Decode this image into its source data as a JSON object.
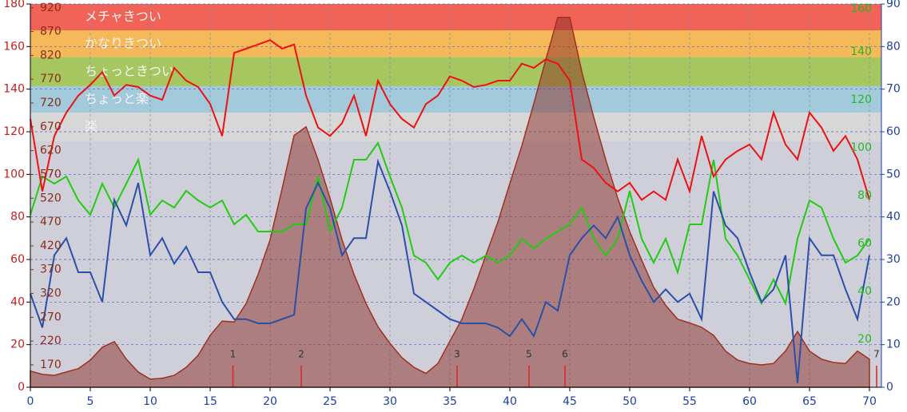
{
  "chart_data": {
    "type": "line",
    "x": [
      0,
      1,
      2,
      3,
      4,
      5,
      6,
      7,
      8,
      9,
      10,
      11,
      12,
      13,
      14,
      15,
      16,
      17,
      18,
      19,
      20,
      21,
      22,
      23,
      24,
      25,
      26,
      27,
      28,
      29,
      30,
      31,
      32,
      33,
      34,
      35,
      36,
      37,
      38,
      39,
      40,
      41,
      42,
      43,
      44,
      45,
      46,
      47,
      48,
      49,
      50,
      51,
      52,
      53,
      54,
      55,
      56,
      57,
      58,
      59,
      60,
      61,
      62,
      63,
      64,
      65,
      66,
      67,
      68,
      69,
      70
    ],
    "xlim": [
      0,
      71
    ],
    "xticks": [
      0,
      5,
      10,
      15,
      20,
      25,
      30,
      35,
      40,
      45,
      50,
      55,
      60,
      65,
      70
    ],
    "ylim": [
      0,
      180
    ],
    "yticks": [
      0,
      20,
      40,
      60,
      80,
      100,
      120,
      140,
      160,
      180
    ],
    "y2lim": [
      0,
      90
    ],
    "y2ticks": [
      0,
      10,
      20,
      30,
      40,
      50,
      60,
      70,
      80,
      90
    ],
    "y3lim": [
      123,
      928
    ],
    "y3ticks": [
      170,
      220,
      270,
      320,
      370,
      420,
      470,
      520,
      570,
      620,
      670,
      720,
      770,
      820,
      870,
      920
    ],
    "y4lim": [
      0,
      160
    ],
    "y4ticks": [
      20,
      40,
      60,
      80,
      100,
      120,
      140,
      160
    ],
    "grid": true,
    "zones": [
      {
        "label": "メチャきつい",
        "from": 167.6,
        "to": 180,
        "color": "#f06356"
      },
      {
        "label": "かなりきつい",
        "from": 155,
        "to": 167.6,
        "color": "#f6b95a"
      },
      {
        "label": "ちょっときつい",
        "from": 141.4,
        "to": 155,
        "color": "#a6c75f"
      },
      {
        "label": "ちょっと楽",
        "from": 129,
        "to": 141.4,
        "color": "#a3cadb"
      },
      {
        "label": "楽",
        "from": 115.5,
        "to": 129,
        "color": "#d8d7d8"
      }
    ],
    "markers": [
      {
        "x": 16.9,
        "label": "1"
      },
      {
        "x": 22.6,
        "label": "2"
      },
      {
        "x": 35.6,
        "label": "3"
      },
      {
        "x": 41.6,
        "label": "5"
      },
      {
        "x": 44.6,
        "label": "6"
      },
      {
        "x": 70.6,
        "label": "7"
      }
    ],
    "series": [
      {
        "color": "#a0301e",
        "axis": "y3",
        "area": true,
        "values": [
          157,
          150,
          148,
          155,
          162,
          180,
          207,
          219,
          182,
          155,
          140,
          142,
          148,
          165,
          190,
          232,
          262,
          260,
          299,
          360,
          433,
          540,
          652,
          670,
          601,
          520,
          433,
          360,
          299,
          250,
          215,
          185,
          165,
          152,
          173,
          220,
          266,
          330,
          400,
          470,
          551,
          630,
          719,
          811,
          900,
          900,
          786,
          690,
          601,
          520,
          450,
          390,
          333,
          295,
          266,
          258,
          249,
          232,
          199,
          180,
          173,
          170,
          173,
          199,
          240,
          199,
          182,
          175,
          173,
          199,
          182
        ]
      },
      {
        "color": "#22cc11",
        "axis": "y4",
        "values": [
          72,
          88,
          85,
          88,
          78,
          72,
          85,
          75,
          85,
          95,
          72,
          78,
          75,
          82,
          78,
          75,
          78,
          68,
          72,
          65,
          65,
          65,
          68,
          68,
          88,
          65,
          75,
          95,
          95,
          102,
          88,
          75,
          55,
          52,
          45,
          52,
          55,
          52,
          55,
          52,
          55,
          62,
          58,
          62,
          65,
          68,
          75,
          62,
          55,
          62,
          82,
          62,
          52,
          62,
          48,
          68,
          68,
          95,
          62,
          55,
          45,
          35,
          45,
          35,
          62,
          78,
          75,
          62,
          52,
          55,
          62
        ]
      },
      {
        "color": "#2b4fa8",
        "axis": "y2",
        "values": [
          22,
          14,
          31,
          35,
          27,
          27,
          20,
          44,
          38,
          48,
          31,
          35,
          29,
          33,
          27,
          27,
          20,
          16,
          16,
          15,
          15,
          16,
          17,
          42,
          48,
          42,
          31,
          35,
          35,
          53,
          46,
          38,
          22,
          20,
          18,
          16,
          15,
          15,
          15,
          14,
          12,
          16,
          12,
          20,
          18,
          31,
          35,
          38,
          35,
          40,
          31,
          25,
          20,
          23,
          20,
          22,
          16,
          46,
          38,
          35,
          27,
          20,
          23,
          31,
          1,
          35,
          31,
          31,
          23,
          16,
          31
        ]
      },
      {
        "color": "#ee1111",
        "axis": "y",
        "values": [
          126,
          92,
          118,
          129,
          137,
          142,
          148,
          137,
          142,
          141,
          137,
          135,
          150,
          144,
          141,
          133,
          118,
          157,
          159,
          161,
          163,
          159,
          161,
          137,
          122,
          118,
          124,
          137,
          118,
          144,
          133,
          126,
          122,
          133,
          137,
          146,
          144,
          141,
          142,
          144,
          144,
          152,
          150,
          154,
          152,
          144,
          107,
          103,
          96,
          92,
          96,
          88,
          92,
          88,
          107,
          92,
          118,
          99,
          107,
          111,
          114,
          107,
          129,
          114,
          107,
          129,
          122,
          111,
          118,
          107,
          88
        ]
      }
    ]
  }
}
